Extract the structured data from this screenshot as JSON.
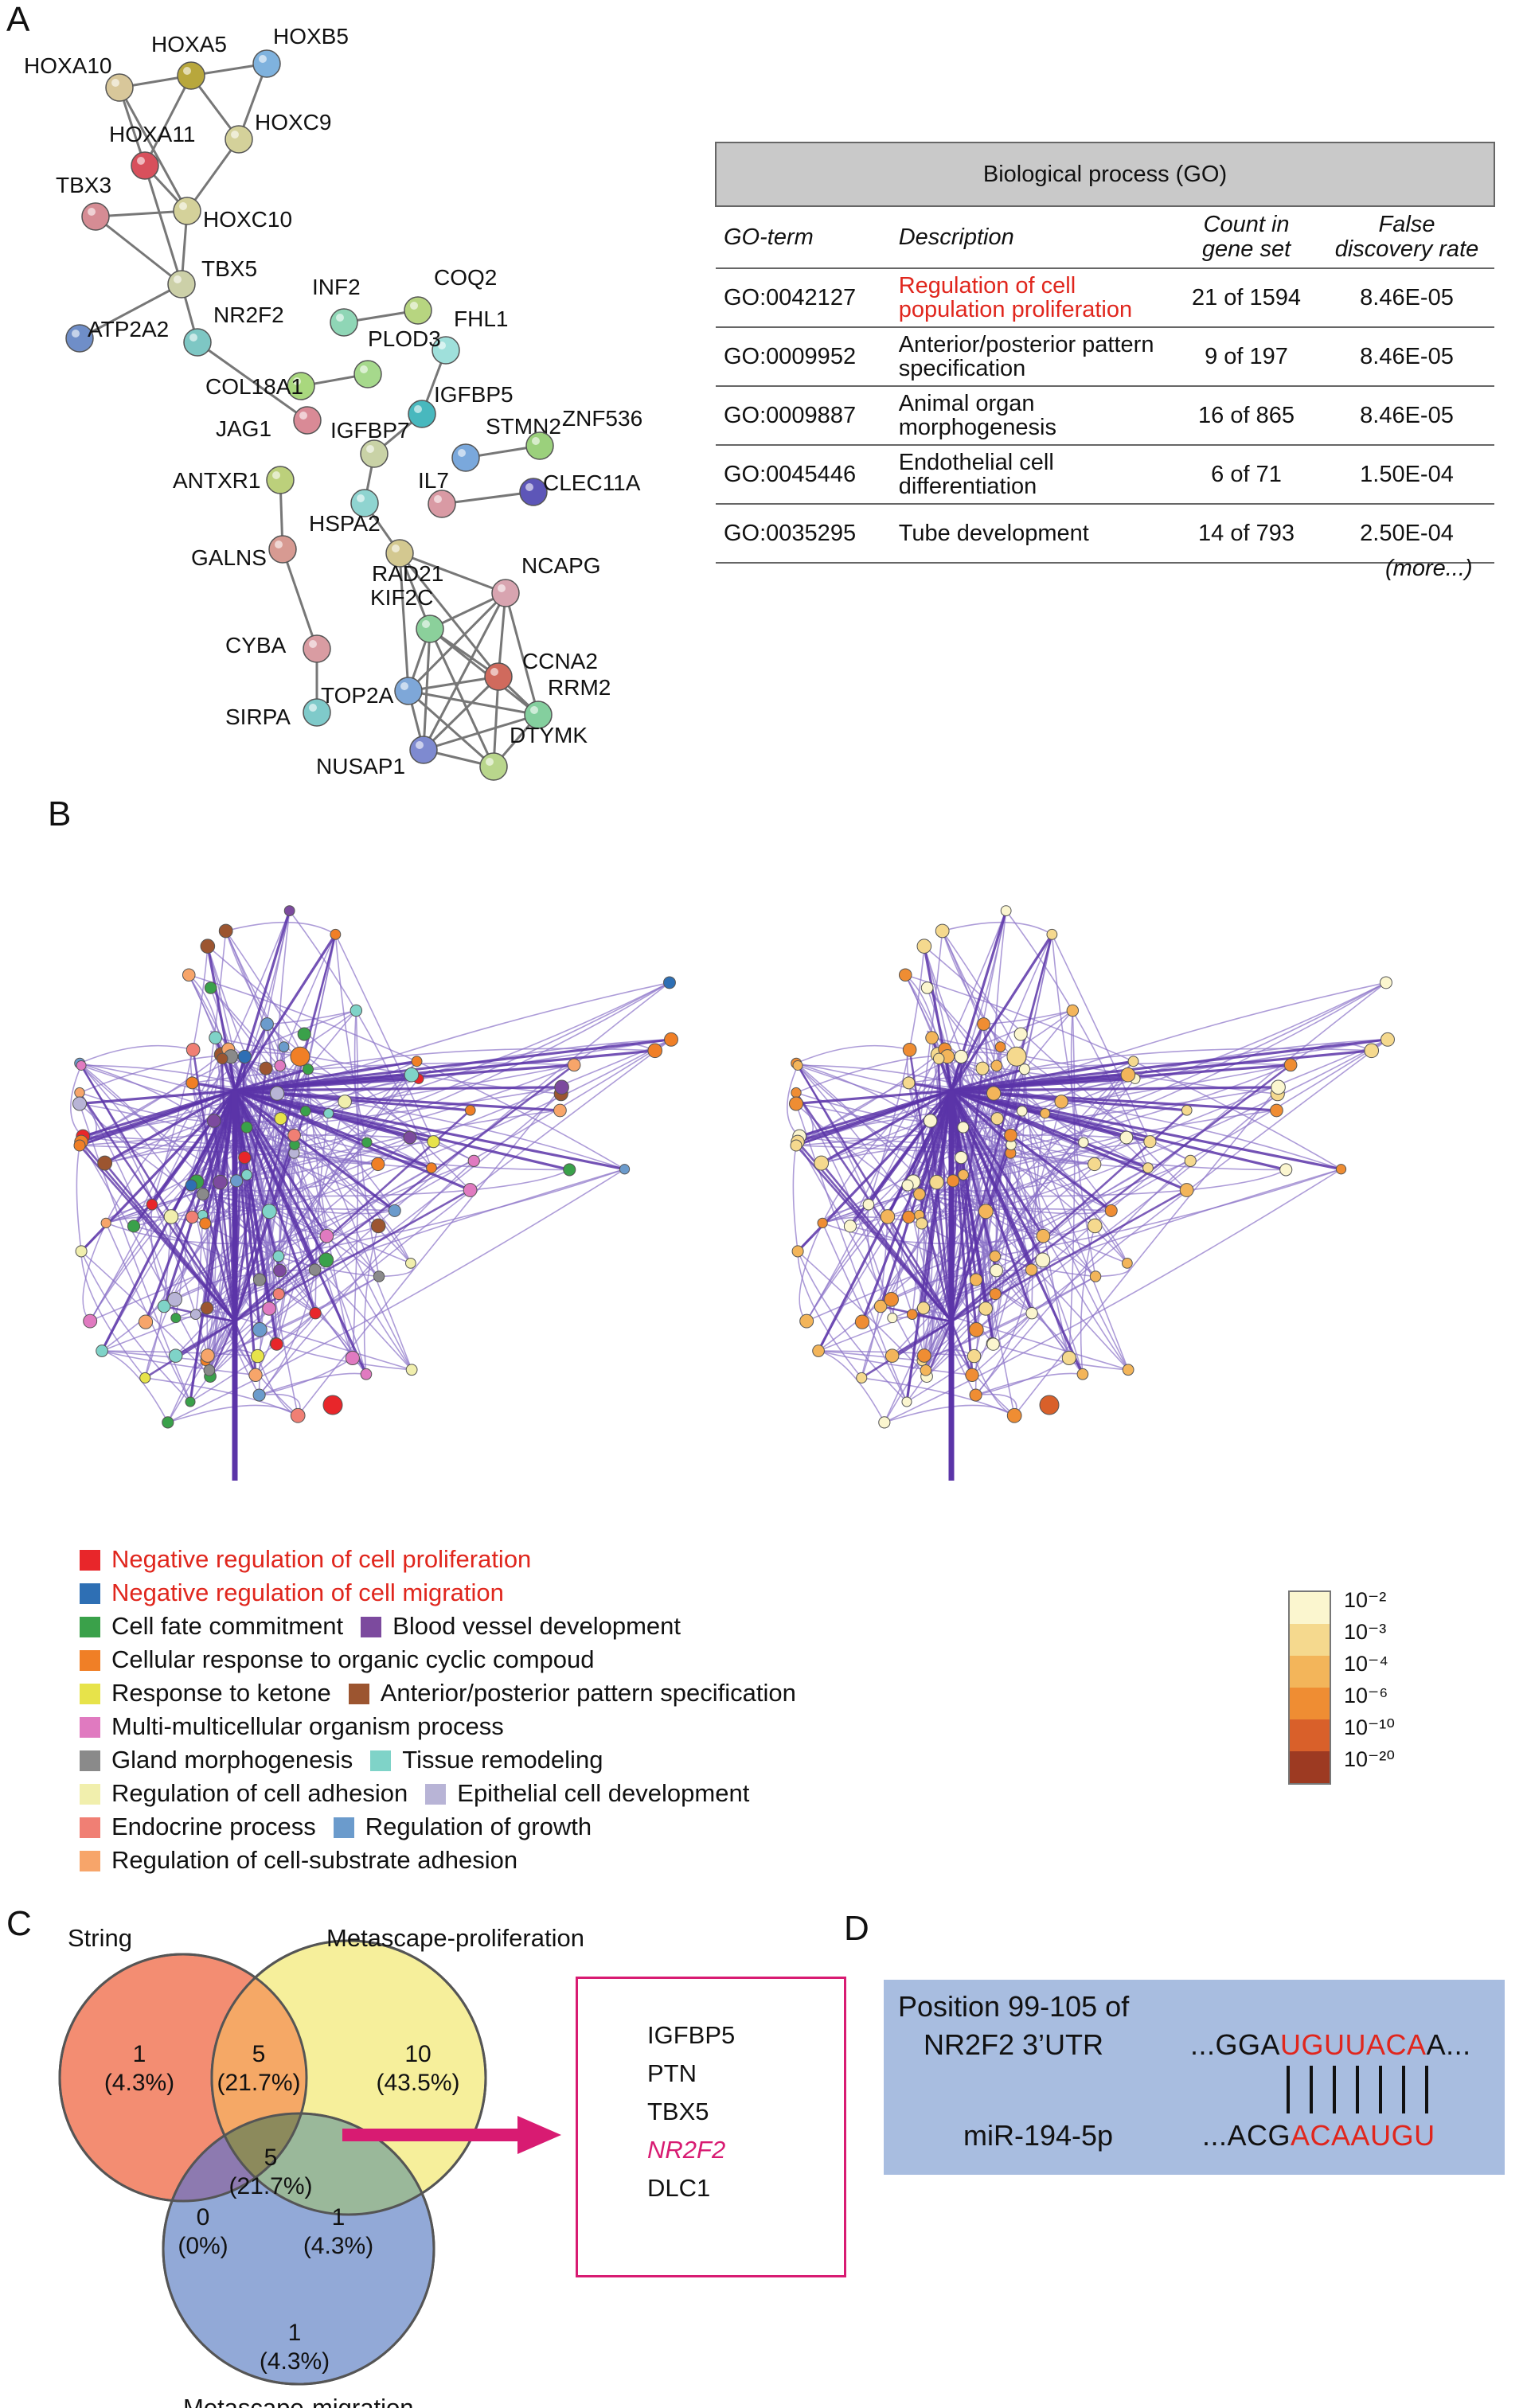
{
  "panels": {
    "a": "A",
    "b": "B",
    "c": "C",
    "d": "D"
  },
  "network_genes": [
    "HOXA10",
    "HOXA5",
    "HOXB5",
    "HOXC9",
    "HOXA11",
    "HOXC10",
    "TBX3",
    "TBX5",
    "ATP2A2",
    "NR2F2",
    "INF2",
    "COQ2",
    "FHL1",
    "PLOD3",
    "COL18A1",
    "IGFBP5",
    "JAG1",
    "IGFBP7",
    "STMN2",
    "ZNF536",
    "CLEC11A",
    "ANTXR1",
    "IL7",
    "HSPA2",
    "RAD21",
    "GALNS",
    "NCAPG",
    "KIF2C",
    "CCNA2",
    "CYBA",
    "TOP2A",
    "RRM2",
    "SIRPA",
    "NUSAP1",
    "DTYMK"
  ],
  "go_table": {
    "title": "Biological process (GO)",
    "columns": [
      "GO-term",
      "Description",
      "Count in gene set",
      "False discovery rate"
    ],
    "rows": [
      {
        "term": "GO:0042127",
        "description": "Regulation of cell population proliferation",
        "count": "21 of 1594",
        "fdr": "8.46E-05",
        "highlight": true
      },
      {
        "term": "GO:0009952",
        "description": "Anterior/posterior pattern specification",
        "count": "9 of 197",
        "fdr": "8.46E-05"
      },
      {
        "term": "GO:0009887",
        "description": "Animal organ morphogenesis",
        "count": "16 of 865",
        "fdr": "8.46E-05"
      },
      {
        "term": "GO:0045446",
        "description": "Endothelial cell differentiation",
        "count": "6 of 71",
        "fdr": "1.50E-04"
      },
      {
        "term": "GO:0035295",
        "description": "Tube development",
        "count": "14 of 793",
        "fdr": "2.50E-04"
      }
    ],
    "more": "(more...)"
  },
  "legend_b": [
    {
      "label": "Negative regulation of cell proliferation",
      "color": "#e8262a",
      "red": true
    },
    {
      "label": "Negative regulation of cell migration",
      "color": "#2e6fb4",
      "red": true
    },
    {
      "label": "Cell fate commitment",
      "color": "#3aa14a"
    },
    {
      "label": "Blood vessel development",
      "color": "#7c4a9e"
    },
    {
      "label": "Cellular response to organic cyclic compoud",
      "color": "#f07f26"
    },
    {
      "label": "Response to ketone",
      "color": "#e7e34a"
    },
    {
      "label": "Anterior/posterior pattern specification",
      "color": "#9c5530"
    },
    {
      "label": "Multi-multicellular organism process",
      "color": "#e07ac0"
    },
    {
      "label": "Gland morphogenesis",
      "color": "#8a8a8a"
    },
    {
      "label": "Tissue remodeling",
      "color": "#7fd3c8"
    },
    {
      "label": "Regulation of cell adhesion",
      "color": "#f1efad"
    },
    {
      "label": "Epithelial cell development",
      "color": "#b8b4d6"
    },
    {
      "label": "Endocrine process",
      "color": "#f07f74"
    },
    {
      "label": "Regulation of growth",
      "color": "#6b9bcc"
    },
    {
      "label": "Regulation of cell-substrate adhesion",
      "color": "#f7a56a"
    }
  ],
  "colorbar": {
    "labels": [
      "10⁻²",
      "10⁻³",
      "10⁻⁴",
      "10⁻⁶",
      "10⁻¹⁰",
      "10⁻²⁰"
    ],
    "colors": [
      "#fbf6cf",
      "#f5d98e",
      "#f3b55a",
      "#ef8d33",
      "#d9602a",
      "#9d3a22"
    ]
  },
  "venn": {
    "sets": [
      "String",
      "Metascape-proliferation",
      "Metascape-migration"
    ],
    "regions": [
      {
        "n": "1",
        "pct": "(4.3%)"
      },
      {
        "n": "5",
        "pct": "(21.7%)"
      },
      {
        "n": "10",
        "pct": "(43.5%)"
      },
      {
        "n": "5",
        "pct": "(21.7%)"
      },
      {
        "n": "0",
        "pct": "(0%)"
      },
      {
        "n": "1",
        "pct": "(4.3%)"
      },
      {
        "n": "1",
        "pct": "(4.3%)"
      }
    ],
    "colors": {
      "string": "#f2876a",
      "proliferation": "#f5ec8a",
      "migration": "#7f9ad0"
    }
  },
  "gene_list": [
    "IGFBP5",
    "PTN",
    "TBX5",
    "NR2F2",
    "DLC1"
  ],
  "mirna": {
    "position": "Position 99-105 of",
    "utr_label": "NR2F2 3’UTR",
    "utr_prefix": "...GGA",
    "utr_match": "UGUUACA",
    "utr_suffix": "A...",
    "mir_label": "miR-194-5p",
    "mir_prefix": "...ACG",
    "mir_match": "ACAAUGU"
  }
}
